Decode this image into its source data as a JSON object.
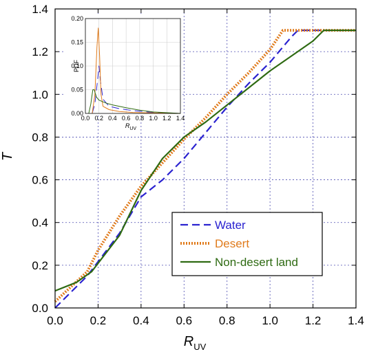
{
  "chart_data": [
    {
      "type": "line",
      "xlabel": "R",
      "xlabel_sub": "UV",
      "ylabel": "T",
      "xlim": [
        0,
        1.4
      ],
      "ylim": [
        0,
        1.4
      ],
      "x_ticks": [
        "0.0",
        "0.2",
        "0.4",
        "0.6",
        "0.8",
        "1.0",
        "1.2",
        "1.4"
      ],
      "y_ticks": [
        "0.0",
        "0.2",
        "0.4",
        "0.6",
        "0.8",
        "1.0",
        "1.2",
        "1.4"
      ],
      "grid": true,
      "legend_position": "bottom-right",
      "series": [
        {
          "name": "Water",
          "color": "#2a22d0",
          "style": "dashed",
          "points": [
            [
              0.0,
              0.0
            ],
            [
              0.15,
              0.15
            ],
            [
              0.3,
              0.35
            ],
            [
              0.4,
              0.52
            ],
            [
              0.5,
              0.6
            ],
            [
              0.6,
              0.7
            ],
            [
              0.7,
              0.82
            ],
            [
              0.8,
              0.94
            ],
            [
              0.9,
              1.05
            ],
            [
              1.0,
              1.15
            ],
            [
              1.1,
              1.27
            ],
            [
              1.13,
              1.3
            ],
            [
              1.4,
              1.3
            ]
          ]
        },
        {
          "name": "Desert",
          "color": "#e07b1c",
          "style": "dotted",
          "points": [
            [
              0.0,
              0.03
            ],
            [
              0.15,
              0.17
            ],
            [
              0.2,
              0.27
            ],
            [
              0.3,
              0.43
            ],
            [
              0.4,
              0.57
            ],
            [
              0.5,
              0.68
            ],
            [
              0.6,
              0.79
            ],
            [
              0.7,
              0.89
            ],
            [
              0.8,
              1.0
            ],
            [
              0.9,
              1.1
            ],
            [
              1.0,
              1.21
            ],
            [
              1.06,
              1.3
            ],
            [
              1.4,
              1.3
            ]
          ]
        },
        {
          "name": "Non-desert land",
          "color": "#2e6a12",
          "style": "solid",
          "points": [
            [
              0.0,
              0.08
            ],
            [
              0.1,
              0.12
            ],
            [
              0.17,
              0.17
            ],
            [
              0.3,
              0.34
            ],
            [
              0.4,
              0.55
            ],
            [
              0.5,
              0.7
            ],
            [
              0.6,
              0.8
            ],
            [
              0.7,
              0.87
            ],
            [
              0.8,
              0.95
            ],
            [
              0.9,
              1.03
            ],
            [
              1.0,
              1.11
            ],
            [
              1.1,
              1.18
            ],
            [
              1.2,
              1.25
            ],
            [
              1.25,
              1.3
            ],
            [
              1.4,
              1.3
            ]
          ]
        }
      ]
    },
    {
      "type": "line",
      "title": "",
      "xlabel": "R",
      "xlabel_sub": "UV",
      "ylabel": "PDF",
      "xlim": [
        0,
        1.4
      ],
      "ylim": [
        0,
        0.2
      ],
      "x_ticks": [
        "0.0",
        "0.2",
        "0.4",
        "0.6",
        "0.8",
        "1.0",
        "1.2",
        "1.4"
      ],
      "y_ticks": [
        "0.00",
        "0.05",
        "0.10",
        "0.15",
        "0.20"
      ],
      "grid": true,
      "series": [
        {
          "name": "Water",
          "color": "#2a22d0",
          "style": "dashed",
          "points": [
            [
              0.1,
              0.0
            ],
            [
              0.14,
              0.02
            ],
            [
              0.18,
              0.07
            ],
            [
              0.2,
              0.1
            ],
            [
              0.22,
              0.07
            ],
            [
              0.26,
              0.03
            ],
            [
              0.35,
              0.015
            ],
            [
              0.5,
              0.01
            ],
            [
              0.7,
              0.006
            ],
            [
              1.0,
              0.002
            ],
            [
              1.4,
              0.0
            ]
          ]
        },
        {
          "name": "Desert",
          "color": "#e07b1c",
          "style": "solid",
          "points": [
            [
              0.1,
              0.0
            ],
            [
              0.14,
              0.04
            ],
            [
              0.17,
              0.14
            ],
            [
              0.19,
              0.18
            ],
            [
              0.21,
              0.12
            ],
            [
              0.23,
              0.04
            ],
            [
              0.26,
              0.015
            ],
            [
              0.35,
              0.008
            ],
            [
              0.5,
              0.004
            ],
            [
              0.7,
              0.002
            ],
            [
              1.4,
              0.0
            ]
          ]
        },
        {
          "name": "Non-desert land",
          "color": "#2e6a12",
          "style": "solid",
          "points": [
            [
              0.05,
              0.0
            ],
            [
              0.08,
              0.02
            ],
            [
              0.11,
              0.05
            ],
            [
              0.13,
              0.05
            ],
            [
              0.16,
              0.035
            ],
            [
              0.2,
              0.028
            ],
            [
              0.3,
              0.022
            ],
            [
              0.4,
              0.018
            ],
            [
              0.6,
              0.012
            ],
            [
              0.8,
              0.007
            ],
            [
              1.0,
              0.003
            ],
            [
              1.4,
              0.0
            ]
          ]
        }
      ]
    }
  ]
}
